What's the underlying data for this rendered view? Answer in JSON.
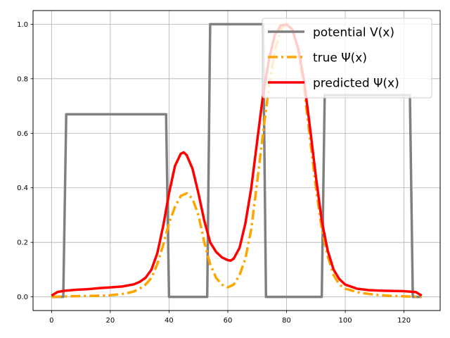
{
  "chart_data": {
    "type": "line",
    "title": "",
    "xlabel": "",
    "ylabel": "",
    "xlim": [
      -6.3,
      132.3
    ],
    "ylim": [
      -0.05,
      1.05
    ],
    "xticks": [
      0,
      20,
      40,
      60,
      80,
      100,
      120
    ],
    "yticks": [
      0.0,
      0.2,
      0.4,
      0.6,
      0.8,
      1.0
    ],
    "xtick_labels": [
      "0",
      "20",
      "40",
      "60",
      "80",
      "100",
      "120"
    ],
    "ytick_labels": [
      "0.0",
      "0.2",
      "0.4",
      "0.6",
      "0.8",
      "1.0"
    ],
    "grid": true,
    "legend_position": "upper-right",
    "series": [
      {
        "name": "potential V(x)",
        "color": "#808080",
        "style": "solid",
        "x": [
          0,
          4,
          5,
          39,
          40,
          53,
          54,
          72,
          73,
          92,
          93,
          122,
          123,
          126
        ],
        "y": [
          0,
          0,
          0.67,
          0.67,
          0,
          0,
          1.0,
          1.0,
          0,
          0,
          0.74,
          0.74,
          0,
          0
        ]
      },
      {
        "name": "true Ψ(x)",
        "color": "#ffa500",
        "style": "dashdot",
        "x": [
          0,
          5,
          10,
          15,
          20,
          25,
          28,
          30,
          32,
          34,
          36,
          38,
          40,
          42,
          44,
          46,
          48,
          50,
          52,
          54,
          56,
          58,
          60,
          62,
          64,
          66,
          68,
          70,
          72,
          74,
          76,
          78,
          80,
          82,
          84,
          86,
          88,
          90,
          92,
          94,
          96,
          98,
          100,
          105,
          110,
          115,
          120,
          126
        ],
        "y": [
          0.0,
          0.002,
          0.003,
          0.004,
          0.006,
          0.012,
          0.02,
          0.03,
          0.045,
          0.07,
          0.12,
          0.19,
          0.27,
          0.33,
          0.37,
          0.38,
          0.36,
          0.3,
          0.2,
          0.12,
          0.07,
          0.045,
          0.035,
          0.045,
          0.08,
          0.14,
          0.25,
          0.42,
          0.6,
          0.77,
          0.9,
          0.98,
          1.0,
          0.98,
          0.9,
          0.76,
          0.58,
          0.4,
          0.25,
          0.15,
          0.08,
          0.045,
          0.03,
          0.015,
          0.008,
          0.004,
          0.002,
          0.0
        ],
        "stroke_width": 3.5
      },
      {
        "name": "predicted Ψ(x)",
        "color": "#ff0000",
        "style": "solid",
        "x": [
          0,
          2,
          4,
          8,
          12,
          16,
          20,
          24,
          28,
          30,
          32,
          34,
          36,
          38,
          40,
          42,
          44,
          45,
          46,
          48,
          50,
          52,
          54,
          56,
          58,
          60,
          61,
          62,
          64,
          66,
          68,
          70,
          72,
          74,
          76,
          78,
          80,
          82,
          84,
          86,
          88,
          90,
          92,
          94,
          96,
          98,
          100,
          104,
          108,
          112,
          116,
          120,
          124,
          126
        ],
        "y": [
          0.005,
          0.018,
          0.022,
          0.026,
          0.028,
          0.032,
          0.035,
          0.038,
          0.046,
          0.055,
          0.07,
          0.1,
          0.16,
          0.26,
          0.38,
          0.48,
          0.525,
          0.53,
          0.52,
          0.47,
          0.38,
          0.28,
          0.2,
          0.165,
          0.145,
          0.135,
          0.133,
          0.14,
          0.18,
          0.27,
          0.4,
          0.57,
          0.74,
          0.87,
          0.96,
          0.995,
          1.0,
          0.98,
          0.91,
          0.79,
          0.62,
          0.44,
          0.28,
          0.17,
          0.1,
          0.065,
          0.045,
          0.03,
          0.025,
          0.023,
          0.022,
          0.021,
          0.018,
          0.005
        ],
        "stroke_width": 3.5
      }
    ]
  }
}
